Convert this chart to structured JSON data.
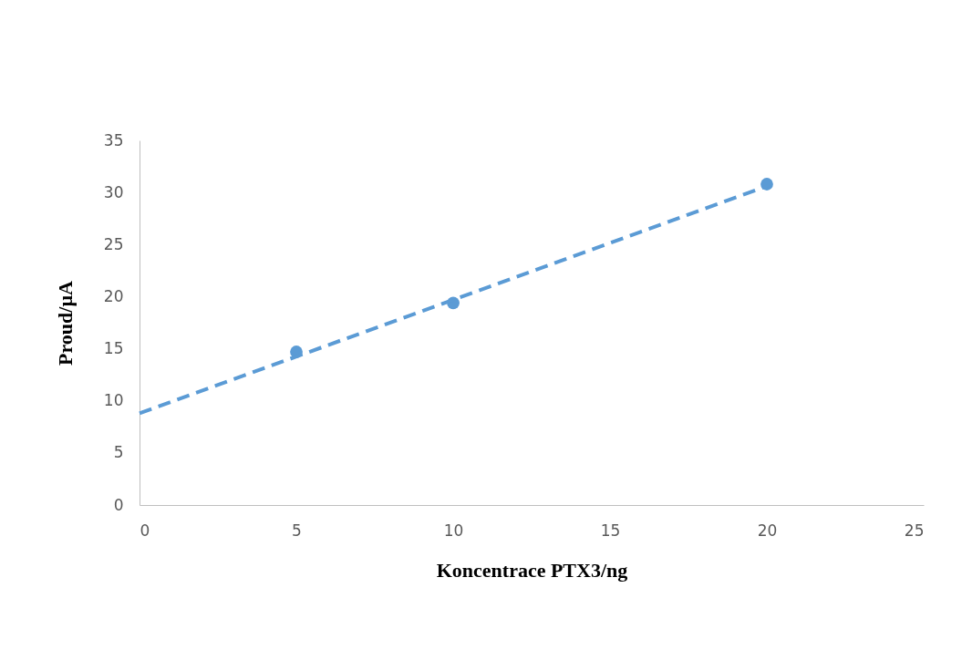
{
  "chart_data": {
    "type": "scatter",
    "xlabel": "Koncentrace PTX3/ng",
    "ylabel": "Proud/µA",
    "x": [
      5,
      10,
      20
    ],
    "series": [
      {
        "color": "#5b9bd5",
        "values": [
          14.7,
          19.4,
          30.8
        ],
        "marker": "circle"
      },
      {
        "type": "line",
        "color": "#5b9bd5",
        "x": [
          0,
          20
        ],
        "values": [
          8.8,
          30.6
        ],
        "line_style": "dashed",
        "marker": "none"
      }
    ],
    "xlim": [
      0,
      25
    ],
    "xticks": [
      0,
      5,
      10,
      15,
      20,
      25
    ],
    "ylim": [
      0,
      35
    ],
    "yticks": [
      0,
      5,
      10,
      15,
      20,
      25,
      30,
      35
    ],
    "grid": false,
    "legend": false
  }
}
